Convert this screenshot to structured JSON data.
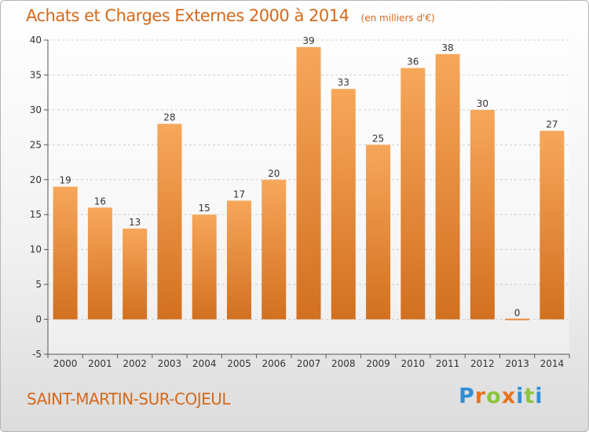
{
  "header": {
    "title": "Achats et Charges Externes 2000 à 2014",
    "subtitle": "(en milliers d'€)"
  },
  "location": "SAINT-MARTIN-SUR-COJEUL",
  "logo": [
    "P",
    "r",
    "o",
    "x",
    "i",
    "t",
    "i"
  ],
  "colors": {
    "bar_top": "#f7a75a",
    "bar_bottom": "#d2701f",
    "title": "#d4691c",
    "grid": "#cfcfcf"
  },
  "chart_data": {
    "type": "bar",
    "title": "Achats et Charges Externes 2000 à 2014",
    "categories": [
      "2000",
      "2001",
      "2002",
      "2003",
      "2004",
      "2005",
      "2006",
      "2007",
      "2008",
      "2009",
      "2010",
      "2011",
      "2012",
      "2013",
      "2014"
    ],
    "values": [
      19,
      16,
      13,
      28,
      15,
      17,
      20,
      39,
      33,
      25,
      36,
      38,
      30,
      0,
      27
    ],
    "ylim": [
      -5,
      40
    ],
    "yticks": [
      -5,
      0,
      5,
      10,
      15,
      20,
      25,
      30,
      35,
      40
    ],
    "grid": true,
    "xlabel": "",
    "ylabel": ""
  }
}
